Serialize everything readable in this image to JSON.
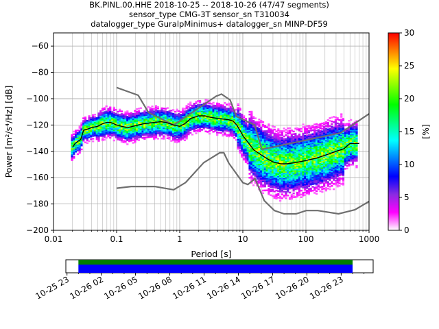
{
  "header": {
    "title_line1": "BK.PINL.00.HHE   2018-10-25 -- 2018-10-26  (47/47 segments)",
    "title_line2": "sensor_type CMG-3T sensor_sn T310034",
    "title_line3": "datalogger_type GuralpMinimus+ datalogger_sn MINP-DF59"
  },
  "chart_data": {
    "type": "heatmap",
    "xlabel": "Period [s]",
    "ylabel_text": "Power [m²/s⁴/Hz] [dB]",
    "x_scale": "log",
    "xlim": [
      0.01,
      1000
    ],
    "ylim": [
      -200,
      -50
    ],
    "x_ticks": [
      0.01,
      0.1,
      1,
      10,
      100,
      1000
    ],
    "x_tick_labels": [
      "0.01",
      "0.1",
      "1",
      "10",
      "100",
      "1000"
    ],
    "y_ticks": [
      -200,
      -180,
      -160,
      -140,
      -120,
      -100,
      -80,
      -60
    ],
    "y_tick_labels": [
      "−200",
      "−180",
      "−160",
      "−140",
      "−120",
      "−100",
      "−80",
      "−60"
    ],
    "grid": true,
    "colorbar": {
      "label": "[%]",
      "range": [
        0,
        30
      ],
      "ticks": [
        0,
        5,
        10,
        15,
        20,
        25,
        30
      ],
      "colors": [
        "#ffffff",
        "#ff00ff",
        "#8a2be2",
        "#0000ff",
        "#0080ff",
        "#00ffff",
        "#00ff80",
        "#00ff00",
        "#80ff00",
        "#ffff00",
        "#ff8000",
        "#ff0000"
      ]
    },
    "noise_models": [
      {
        "model": "NHNM",
        "points": [
          [
            0.1,
            -91.5
          ],
          [
            0.22,
            -97.4
          ],
          [
            0.32,
            -110.5
          ],
          [
            0.8,
            -120
          ],
          [
            3.8,
            -98
          ],
          [
            4.6,
            -96.5
          ],
          [
            6.3,
            -101
          ],
          [
            7.9,
            -113.5
          ],
          [
            15.4,
            -120
          ],
          [
            20,
            -138.5
          ],
          [
            354.8,
            -126
          ],
          [
            1000,
            -111.5
          ]
        ]
      },
      {
        "model": "NLNM",
        "points": [
          [
            0.1,
            -168
          ],
          [
            0.17,
            -166.7
          ],
          [
            0.4,
            -166.7
          ],
          [
            0.8,
            -169.2
          ],
          [
            1.24,
            -163.7
          ],
          [
            2.4,
            -148.6
          ],
          [
            4.3,
            -141.1
          ],
          [
            5,
            -141.1
          ],
          [
            6,
            -149
          ],
          [
            10,
            -163.8
          ],
          [
            12,
            -165.2
          ],
          [
            15.6,
            -160.8
          ],
          [
            21.9,
            -177.5
          ],
          [
            31.6,
            -185
          ],
          [
            45,
            -187.5
          ],
          [
            70,
            -187.5
          ],
          [
            101,
            -185
          ],
          [
            154,
            -185
          ],
          [
            328,
            -187.5
          ],
          [
            600,
            -184.4
          ],
          [
            1000,
            -178
          ]
        ]
      }
    ],
    "mean_curve": {
      "points": [
        [
          0.02,
          -137
        ],
        [
          0.022,
          -134
        ],
        [
          0.025,
          -132
        ],
        [
          0.027,
          -131
        ],
        [
          0.03,
          -124
        ],
        [
          0.035,
          -123
        ],
        [
          0.04,
          -122
        ],
        [
          0.05,
          -121
        ],
        [
          0.06,
          -119
        ],
        [
          0.07,
          -118
        ],
        [
          0.08,
          -118
        ],
        [
          0.09,
          -119
        ],
        [
          0.1,
          -120
        ],
        [
          0.12,
          -121
        ],
        [
          0.15,
          -122
        ],
        [
          0.18,
          -121
        ],
        [
          0.22,
          -120
        ],
        [
          0.27,
          -119
        ],
        [
          0.33,
          -118.5
        ],
        [
          0.4,
          -118
        ],
        [
          0.5,
          -117.5
        ],
        [
          0.6,
          -118
        ],
        [
          0.7,
          -119
        ],
        [
          0.8,
          -120
        ],
        [
          1,
          -121
        ],
        [
          1.2,
          -119
        ],
        [
          1.5,
          -115
        ],
        [
          2,
          -113
        ],
        [
          2.5,
          -113
        ],
        [
          3,
          -114
        ],
        [
          4,
          -115
        ],
        [
          5,
          -115.5
        ],
        [
          6,
          -116
        ],
        [
          7,
          -117
        ],
        [
          8,
          -120
        ],
        [
          9,
          -124
        ],
        [
          10,
          -128
        ],
        [
          12,
          -133
        ],
        [
          15,
          -139
        ],
        [
          20,
          -143
        ],
        [
          25,
          -146
        ],
        [
          30,
          -148
        ],
        [
          40,
          -149.5
        ],
        [
          50,
          -149.5
        ],
        [
          70,
          -148.5
        ],
        [
          100,
          -147
        ],
        [
          150,
          -145
        ],
        [
          200,
          -143
        ],
        [
          300,
          -140
        ],
        [
          400,
          -138
        ],
        [
          500,
          -134
        ],
        [
          700,
          -134
        ]
      ]
    },
    "timeline": {
      "tick_labels": [
        "10-25 23",
        "10-26 02",
        "10-26 05",
        "10-26 08",
        "10-26 11",
        "10-26 14",
        "10-26 17",
        "10-26 20",
        "10-26 23"
      ],
      "tick_hours": [
        23,
        26,
        29,
        32,
        35,
        38,
        41,
        44,
        47
      ],
      "range_hours": [
        22.9,
        49.8
      ],
      "coverage_hours": [
        24.0,
        48.0
      ]
    }
  }
}
